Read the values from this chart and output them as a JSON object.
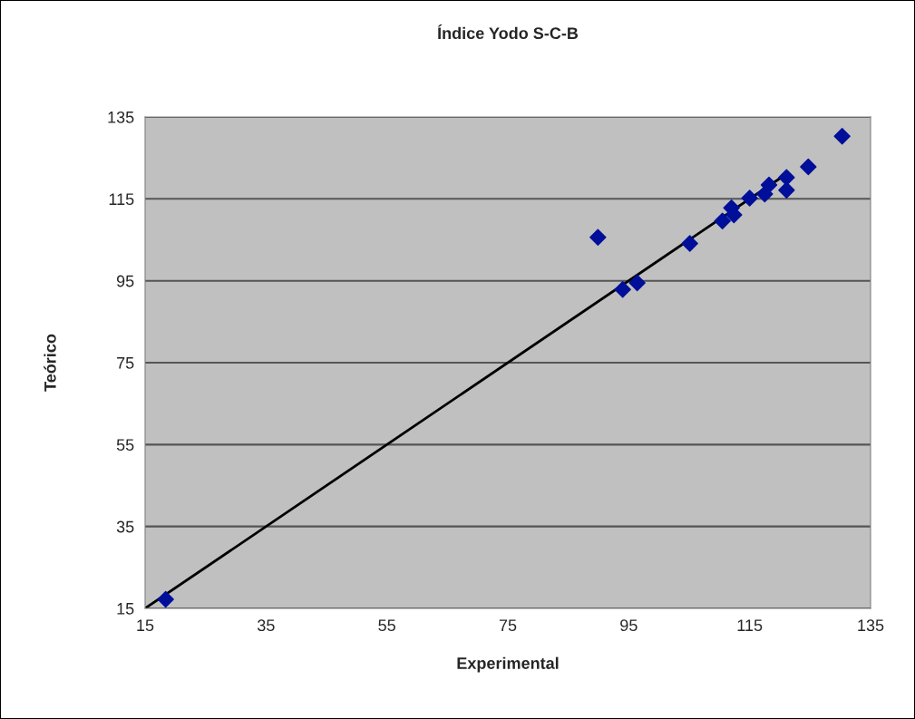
{
  "chart_data": {
    "type": "scatter",
    "title": "Índice Yodo S-C-B",
    "xlabel": "Experimental",
    "ylabel": "Teórico",
    "series": [
      {
        "color": "#000f99",
        "marker": "diamond",
        "x": [
          18.4,
          89.9,
          94.0,
          96.4,
          105.1,
          110.5,
          112.0,
          112.4,
          115.0,
          117.5,
          118.2,
          121.1,
          121.1,
          124.7,
          130.3
        ],
        "values": [
          17.2,
          105.6,
          92.9,
          94.5,
          104.1,
          109.6,
          112.8,
          111.1,
          115.2,
          116.2,
          118.4,
          120.2,
          117.1,
          122.8,
          130.3
        ]
      },
      {
        "type": "line",
        "color": "#000000",
        "marker": "none",
        "line_style": "solid",
        "x": [
          15,
          120
        ],
        "values": [
          15,
          120
        ]
      }
    ],
    "xlim": [
      15,
      135
    ],
    "ylim": [
      15,
      135
    ],
    "xticks": [
      15,
      35,
      55,
      75,
      95,
      115,
      135
    ],
    "yticks": [
      15,
      35,
      55,
      75,
      95,
      115,
      135
    ],
    "grid": "y",
    "legend": false
  }
}
